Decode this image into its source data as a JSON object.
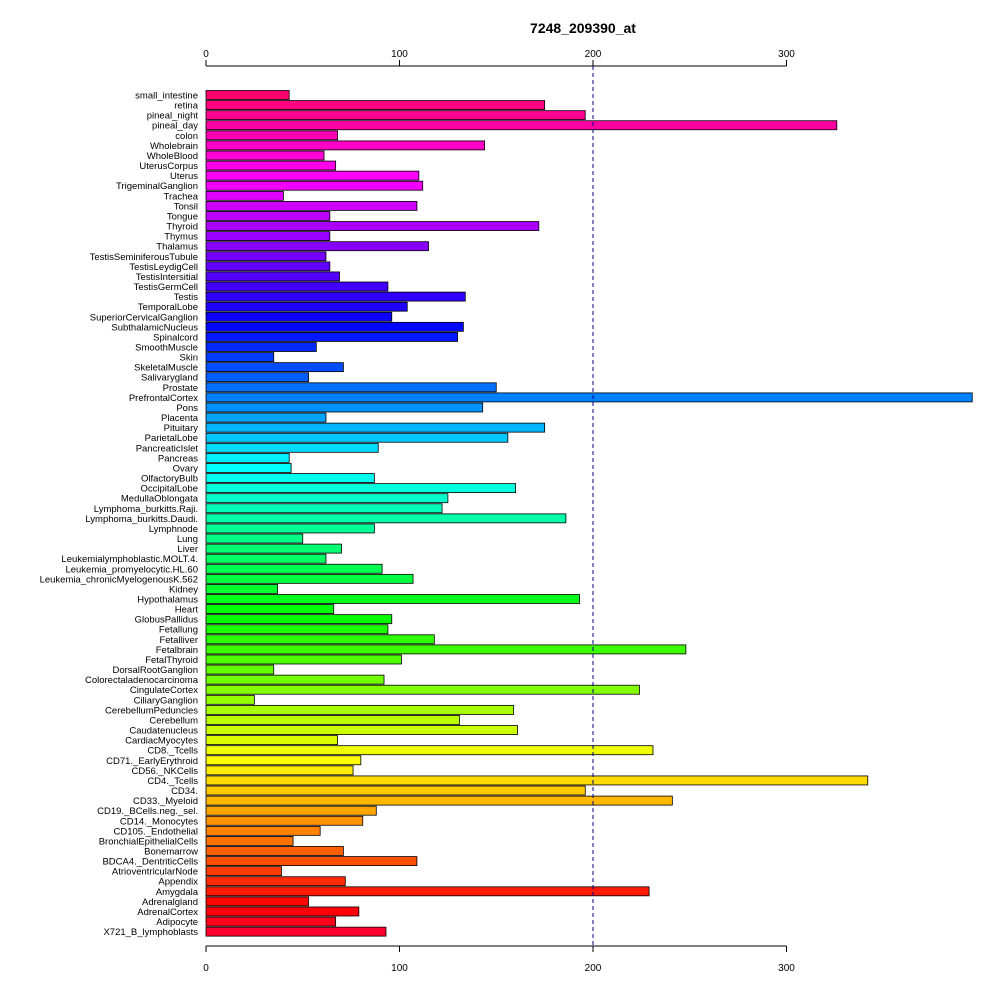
{
  "chart_data": {
    "type": "bar",
    "orientation": "horizontal",
    "title": "7248_209390_at",
    "xlabel": "",
    "ylabel": "",
    "xlim": [
      0,
      396
    ],
    "x_ticks": [
      0,
      100,
      200,
      300
    ],
    "x_tick_labels": [
      "0",
      "100",
      "200",
      "300"
    ],
    "reference_line": 200,
    "reference_line_color": "#00008b",
    "grid": false,
    "legend": "none",
    "bar_color_scheme": "rainbow",
    "categories": [
      "small_intestine",
      "retina",
      "pineal_night",
      "pineal_day",
      "colon",
      "Wholebrain",
      "WholeBlood",
      "UterusCorpus",
      "Uterus",
      "TrigeminalGanglion",
      "Trachea",
      "Tonsil",
      "Tongue",
      "Thyroid",
      "Thymus",
      "Thalamus",
      "TestisSeminiferousTubule",
      "TestisLeydigCell",
      "TestisIntersitial",
      "TestisGermCell",
      "Testis",
      "TemporalLobe",
      "SuperiorCervicalGanglion",
      "SubthalamicNucleus",
      "Spinalcord",
      "SmoothMuscle",
      "Skin",
      "SkeletalMuscle",
      "Salivarygland",
      "Prostate",
      "PrefrontalCortex",
      "Pons",
      "Placenta",
      "Pituitary",
      "ParietalLobe",
      "PancreaticIslet",
      "Pancreas",
      "Ovary",
      "OlfactoryBulb",
      "OccipitalLobe",
      "MedullaOblongata",
      "Lymphoma_burkitts.Raji.",
      "Lymphoma_burkitts.Daudi.",
      "Lymphnode",
      "Lung",
      "Liver",
      "Leukemialymphoblastic.MOLT.4.",
      "Leukemia_promyelocytic.HL.60",
      "Leukemia_chronicMyelogenousK.562",
      "Kidney",
      "Hypothalamus",
      "Heart",
      "GlobusPallidus",
      "Fetallung",
      "Fetalliver",
      "Fetalbrain",
      "FetalThyroid",
      "DorsalRootGanglion",
      "Colorectaladenocarcinoma",
      "CingulateCortex",
      "CiliaryGanglion",
      "CerebellumPeduncles",
      "Cerebellum",
      "Caudatenucleus",
      "CardiacMyocytes",
      "CD8._Tcells",
      "CD71._EarlyErythroid",
      "CD56._NKCells",
      "CD4._Tcells",
      "CD34.",
      "CD33._Myeloid",
      "CD19._BCells.neg._sel.",
      "CD14._Monocytes",
      "CD105._Endothelial",
      "BronchialEpithelialCells",
      "Bonemarrow",
      "BDCA4._DentriticCells",
      "AtrioventricularNode",
      "Appendix",
      "Amygdala",
      "Adrenalgland",
      "AdrenalCortex",
      "Adipocyte",
      "X721_B_lymphoblasts"
    ],
    "values": [
      43,
      175,
      196,
      326,
      68,
      144,
      61,
      67,
      110,
      112,
      40,
      109,
      64,
      172,
      64,
      115,
      62,
      64,
      69,
      94,
      134,
      104,
      96,
      133,
      130,
      57,
      35,
      71,
      53,
      150,
      396,
      143,
      62,
      175,
      156,
      89,
      43,
      44,
      87,
      160,
      125,
      122,
      186,
      87,
      50,
      70,
      62,
      91,
      107,
      37,
      193,
      66,
      96,
      94,
      118,
      248,
      101,
      35,
      92,
      224,
      25,
      159,
      131,
      161,
      68,
      231,
      80,
      76,
      342,
      196,
      241,
      88,
      81,
      59,
      45,
      71,
      109,
      39,
      72,
      229,
      53,
      79,
      67,
      93
    ]
  }
}
